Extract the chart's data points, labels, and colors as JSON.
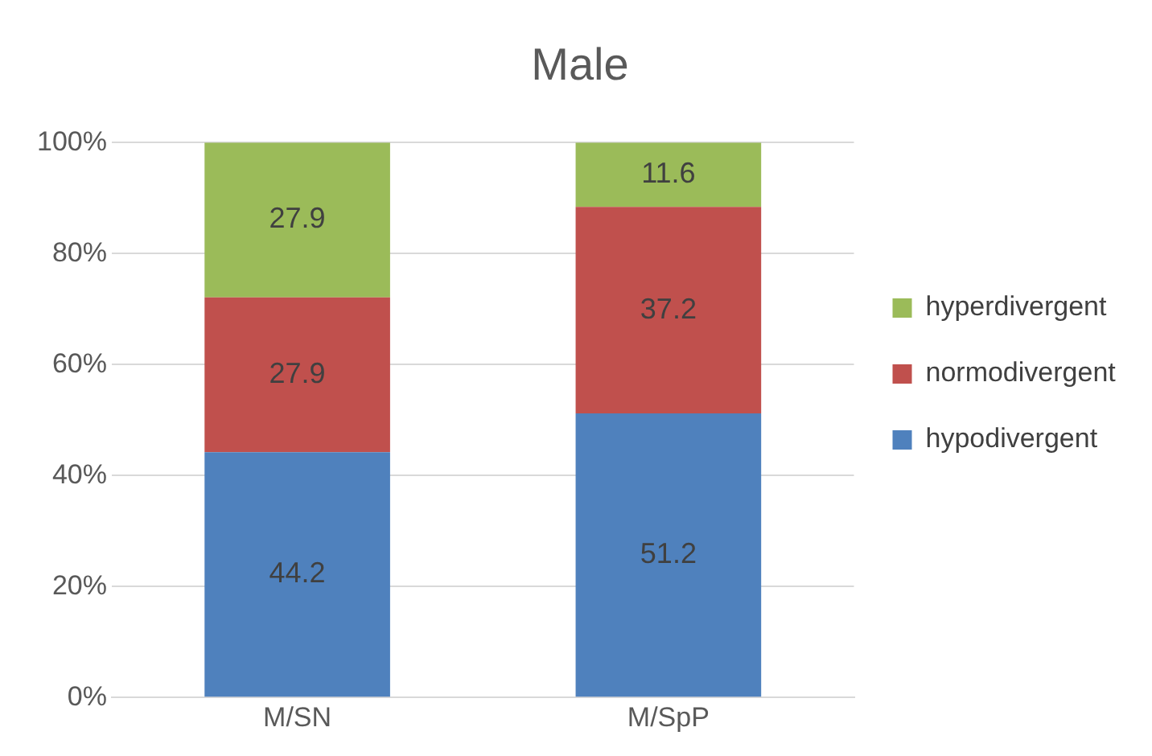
{
  "chart_data": {
    "type": "bar",
    "title": "Male",
    "categories": [
      "M/SN",
      "M/SpP"
    ],
    "stacked": true,
    "series": [
      {
        "name": "hypodivergent",
        "color": "#4f81bd",
        "values": [
          44.2,
          51.2
        ]
      },
      {
        "name": "normodivergent",
        "color": "#c0504d",
        "values": [
          27.9,
          37.2
        ]
      },
      {
        "name": "hyperdivergent",
        "color": "#9bbb59",
        "values": [
          27.9,
          11.6
        ]
      }
    ],
    "ylim": [
      0,
      100
    ],
    "yticks": [
      {
        "value": 0,
        "label": "0%"
      },
      {
        "value": 20,
        "label": "20%"
      },
      {
        "value": 40,
        "label": "40%"
      },
      {
        "value": 60,
        "label": "60%"
      },
      {
        "value": 80,
        "label": "80%"
      },
      {
        "value": 100,
        "label": "100%"
      }
    ],
    "grid": "y",
    "legend": "right",
    "data_labels": true
  }
}
